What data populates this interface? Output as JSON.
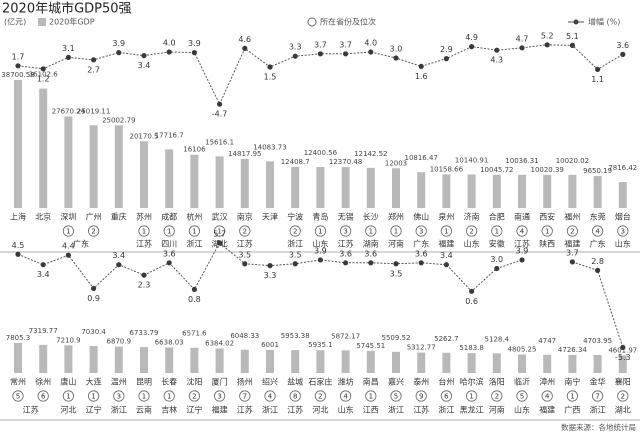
{
  "title": "2020年城市GDP50强",
  "unit": "(亿元)",
  "rank_legend": "所在省份及位次",
  "source": "数据来源：各地统计局",
  "chart_data": [
    {
      "type": "bar-line",
      "categories": [
        "上海",
        "北京",
        "深圳",
        "广州",
        "重庆",
        "苏州",
        "成都",
        "杭州",
        "武汉",
        "南京",
        "天津",
        "宁波",
        "青岛",
        "无锡",
        "长沙",
        "郑州",
        "佛山",
        "泉州",
        "济南",
        "合肥",
        "南通",
        "西安",
        "福州",
        "东莞",
        "烟台"
      ],
      "series": [
        {
          "name": "2020年GDP",
          "color": "#b9b9b9",
          "values": [
            38700.58,
            36102.6,
            27670.24,
            25019.11,
            25002.79,
            20170.5,
            17716.7,
            16106,
            15616.1,
            14817.95,
            14083.73,
            12408.7,
            12400.56,
            12370.48,
            12142.52,
            12003,
            10816.47,
            10158.66,
            10140.91,
            10045.72,
            10036.31,
            10020.39,
            10020.02,
            9650.19,
            7816.42
          ]
        },
        {
          "name": "增幅 (%)",
          "color": "#555555",
          "values": [
            1.7,
            1.2,
            3.1,
            2.7,
            3.9,
            3.4,
            4.0,
            3.9,
            -4.7,
            4.6,
            1.5,
            3.3,
            3.7,
            3.7,
            4.0,
            3.0,
            1.6,
            2.9,
            4.9,
            4.3,
            4.7,
            5.2,
            5.1,
            1.1,
            3.6
          ],
          "value_labels": [
            "1.7",
            "1.2",
            "3.1",
            "2.7",
            "3.9",
            "3.4",
            "4.0",
            "3.9",
            "-4.7",
            "4.6",
            "1.5",
            "3.3",
            "3.7",
            "3.7",
            "4.0",
            "3.0",
            "1.6",
            "2.9",
            "4.9",
            "4.3",
            "4.7",
            "5.2",
            "5.1",
            "1.1",
            "3.6"
          ]
        }
      ],
      "ranks": [
        null,
        null,
        1,
        2,
        null,
        1,
        1,
        1,
        1,
        2,
        null,
        2,
        1,
        3,
        1,
        1,
        3,
        1,
        2,
        1,
        4,
        1,
        2,
        4,
        3
      ],
      "provinces": [
        null,
        null,
        null,
        "广东",
        null,
        "江苏",
        "四川",
        "浙江",
        "湖北",
        "江苏",
        null,
        "浙江",
        "山东",
        "江苏",
        "湖南",
        "河南",
        "广东",
        "福建",
        "山东",
        "安徽",
        "江苏",
        "陕西",
        "福建",
        "广东",
        "山东"
      ]
    },
    {
      "type": "bar-line",
      "categories": [
        "常州",
        "徐州",
        "唐山",
        "大连",
        "温州",
        "昆明",
        "长春",
        "沈阳",
        "厦门",
        "扬州",
        "绍兴",
        "盐城",
        "石家庄",
        "潍坊",
        "南昌",
        "嘉兴",
        "泰州",
        "台州",
        "哈尔滨",
        "洛阳",
        "临沂",
        "漳州",
        "南宁",
        "金华",
        "襄阳"
      ],
      "series": [
        {
          "color": "#b9b9b9",
          "values": [
            7805.3,
            7319.77,
            7210.9,
            7030.4,
            6870.9,
            6733.79,
            6638.03,
            6571.6,
            6384.02,
            6048.33,
            6001,
            5953.38,
            5935.1,
            5872.17,
            5745.51,
            5509.52,
            5312.77,
            5262.7,
            5183.8,
            5128.4,
            4805.25,
            4747,
            4726.34,
            4703.95,
            4601.97
          ]
        },
        {
          "color": "#555555",
          "values": [
            4.5,
            3.4,
            4.4,
            0.9,
            3.4,
            2.3,
            3.6,
            0.8,
            5.7,
            3.5,
            3.3,
            3.5,
            3.9,
            3.6,
            3.6,
            3.5,
            3.6,
            3.4,
            0.6,
            3.0,
            3.9,
            null,
            3.7,
            2.8,
            -5.3
          ],
          "value_labels": [
            "4.5",
            "3.4",
            "4.4",
            "0.9",
            "3.4",
            "2.3",
            "3.6",
            "0.8",
            "5.7",
            "3.5",
            "3.3",
            "3.5",
            "3.9",
            "3.6",
            "3.6",
            "3.5",
            "3.6",
            "3.4",
            "0.6",
            "3.0",
            "3.9",
            null,
            "3.7",
            "2.8",
            "-5.3"
          ]
        }
      ],
      "ranks": [
        5,
        6,
        1,
        1,
        3,
        1,
        1,
        2,
        3,
        7,
        4,
        8,
        2,
        4,
        1,
        5,
        9,
        6,
        1,
        2,
        5,
        4,
        1,
        7,
        2
      ],
      "provinces": [
        null,
        "江苏",
        "河北",
        "辽宁",
        "浙江",
        "云南",
        "吉林",
        "辽宁",
        "福建",
        "江苏",
        "浙江",
        "江苏",
        "河北",
        "山东",
        "江西",
        "浙江",
        "江苏",
        "浙江",
        "黑龙江",
        "河南",
        "山东",
        "福建",
        "广西",
        "浙江",
        "湖北"
      ]
    }
  ]
}
